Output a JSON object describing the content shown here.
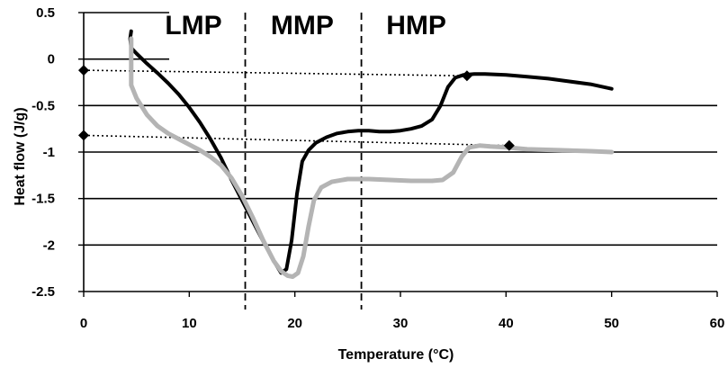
{
  "chart_data": {
    "type": "line",
    "xlabel": "Temperature (°C)",
    "ylabel": "Heat flow (J/g)",
    "xlim": [
      0,
      60
    ],
    "ylim": [
      -2.5,
      0.5
    ],
    "x_ticks": [
      0,
      10,
      20,
      30,
      40,
      50,
      60
    ],
    "x_tick_labels": [
      "0",
      "10",
      "20",
      "30",
      "40",
      "50",
      "60"
    ],
    "y_ticks": [
      0.5,
      0,
      -0.5,
      -1,
      -1.5,
      -2,
      -2.5
    ],
    "y_tick_labels": [
      "0.5",
      "0",
      "-0.5",
      "-1",
      "-1.5",
      "-2",
      "-2.5"
    ],
    "grid": "horizontal",
    "region_boundaries": [
      15.3,
      26.3
    ],
    "regions": [
      {
        "label": "LMP",
        "x_center": 10.4
      },
      {
        "label": "MMP",
        "x_center": 20.7
      },
      {
        "label": "HMP",
        "x_center": 31.5
      }
    ],
    "series": [
      {
        "color": "#000000",
        "points": [
          [
            4.5,
            0.3
          ],
          [
            4.4,
            0.22
          ],
          [
            4.5,
            0.12
          ],
          [
            5,
            0.06
          ],
          [
            6,
            -0.05
          ],
          [
            7,
            -0.15
          ],
          [
            8,
            -0.26
          ],
          [
            9,
            -0.38
          ],
          [
            10,
            -0.52
          ],
          [
            11,
            -0.68
          ],
          [
            12,
            -0.86
          ],
          [
            13,
            -1.06
          ],
          [
            14,
            -1.3
          ],
          [
            15,
            -1.52
          ],
          [
            16,
            -1.74
          ],
          [
            17,
            -1.96
          ],
          [
            18,
            -2.17
          ],
          [
            18.7,
            -2.3
          ],
          [
            19.2,
            -2.26
          ],
          [
            19.7,
            -1.95
          ],
          [
            20.2,
            -1.45
          ],
          [
            20.7,
            -1.1
          ],
          [
            21.3,
            -0.98
          ],
          [
            22,
            -0.9
          ],
          [
            23,
            -0.84
          ],
          [
            24,
            -0.8
          ],
          [
            25,
            -0.78
          ],
          [
            26,
            -0.77
          ],
          [
            27,
            -0.77
          ],
          [
            28,
            -0.78
          ],
          [
            29,
            -0.78
          ],
          [
            30,
            -0.77
          ],
          [
            31,
            -0.75
          ],
          [
            32,
            -0.72
          ],
          [
            33,
            -0.65
          ],
          [
            33.8,
            -0.5
          ],
          [
            34.5,
            -0.3
          ],
          [
            35.2,
            -0.2
          ],
          [
            36,
            -0.17
          ],
          [
            37,
            -0.16
          ],
          [
            38,
            -0.16
          ],
          [
            40,
            -0.17
          ],
          [
            42,
            -0.19
          ],
          [
            44,
            -0.21
          ],
          [
            46,
            -0.24
          ],
          [
            48,
            -0.27
          ],
          [
            50,
            -0.32
          ]
        ]
      },
      {
        "color": "#b4b4b4",
        "points": [
          [
            4.5,
            0.22
          ],
          [
            4.5,
            0.0
          ],
          [
            4.5,
            -0.28
          ],
          [
            5,
            -0.42
          ],
          [
            6,
            -0.6
          ],
          [
            7,
            -0.72
          ],
          [
            8,
            -0.8
          ],
          [
            9,
            -0.86
          ],
          [
            10,
            -0.92
          ],
          [
            11,
            -0.98
          ],
          [
            12,
            -1.05
          ],
          [
            13,
            -1.14
          ],
          [
            14,
            -1.28
          ],
          [
            15,
            -1.47
          ],
          [
            16,
            -1.7
          ],
          [
            17,
            -1.95
          ],
          [
            18,
            -2.17
          ],
          [
            18.7,
            -2.28
          ],
          [
            19.3,
            -2.33
          ],
          [
            19.8,
            -2.34
          ],
          [
            20.3,
            -2.3
          ],
          [
            20.8,
            -2.12
          ],
          [
            21.3,
            -1.8
          ],
          [
            21.8,
            -1.52
          ],
          [
            22.5,
            -1.38
          ],
          [
            23.5,
            -1.32
          ],
          [
            25,
            -1.29
          ],
          [
            27,
            -1.29
          ],
          [
            29,
            -1.3
          ],
          [
            31,
            -1.31
          ],
          [
            33,
            -1.31
          ],
          [
            34,
            -1.3
          ],
          [
            35,
            -1.22
          ],
          [
            35.8,
            -1.05
          ],
          [
            36.5,
            -0.95
          ],
          [
            37.5,
            -0.93
          ],
          [
            38.5,
            -0.94
          ],
          [
            40,
            -0.95
          ],
          [
            42,
            -0.97
          ],
          [
            45,
            -0.98
          ],
          [
            48,
            -0.99
          ],
          [
            50,
            -1.0
          ]
        ]
      }
    ],
    "baselines": [
      {
        "from": [
          0,
          -0.12
        ],
        "to": [
          36.3,
          -0.18
        ]
      },
      {
        "from": [
          0,
          -0.82
        ],
        "to": [
          40.3,
          -0.93
        ]
      }
    ],
    "markers": [
      [
        0,
        -0.12
      ],
      [
        36.3,
        -0.18
      ],
      [
        0,
        -0.82
      ],
      [
        40.3,
        -0.93
      ]
    ]
  }
}
